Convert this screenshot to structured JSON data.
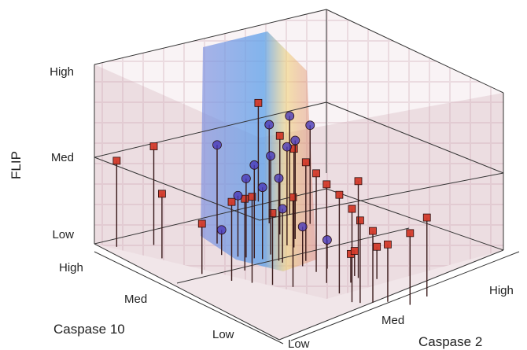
{
  "chart_data": {
    "type": "scatter",
    "title": "",
    "dimensions": 3,
    "axes": {
      "z": {
        "label": "FLIP",
        "ticks": [
          "Low",
          "Med",
          "High"
        ]
      },
      "x": {
        "label": "Caspase 10",
        "ticks": [
          "High",
          "Med",
          "Low"
        ]
      },
      "y": {
        "label": "Caspase 2",
        "ticks": [
          "Low",
          "Med",
          "High"
        ]
      }
    },
    "grid": true,
    "series": [
      {
        "marker": "square",
        "color": "#d23a2a",
        "points": [
          [
            0.06,
            0.05,
            0.48
          ],
          [
            0.62,
            0.22,
            1.05
          ],
          [
            0.7,
            0.25,
            0.9
          ],
          [
            0.74,
            0.28,
            0.84
          ],
          [
            0.78,
            0.3,
            0.78
          ],
          [
            0.8,
            0.33,
            0.72
          ],
          [
            0.82,
            0.36,
            0.66
          ],
          [
            0.84,
            0.4,
            0.6
          ],
          [
            0.86,
            0.44,
            0.52
          ],
          [
            0.88,
            0.46,
            0.46
          ],
          [
            0.9,
            0.5,
            0.4
          ],
          [
            0.92,
            0.55,
            0.32
          ],
          [
            0.2,
            0.1,
            0.62
          ],
          [
            0.22,
            0.12,
            0.36
          ],
          [
            0.45,
            0.3,
            0.4
          ],
          [
            0.5,
            0.2,
            0.44
          ],
          [
            0.55,
            0.25,
            0.48
          ],
          [
            0.6,
            0.3,
            0.4
          ],
          [
            0.65,
            0.35,
            0.5
          ],
          [
            0.7,
            0.6,
            0.54
          ],
          [
            0.95,
            0.7,
            0.44
          ],
          [
            0.98,
            0.6,
            0.4
          ],
          [
            0.4,
            0.15,
            0.28
          ],
          [
            0.74,
            0.65,
            0.18
          ],
          [
            0.72,
            0.55,
            0.16
          ],
          [
            0.68,
            0.6,
            0.14
          ]
        ]
      },
      {
        "marker": "circle",
        "color": "#4a3ab8",
        "points": [
          [
            0.3,
            0.3,
            0.62
          ],
          [
            0.4,
            0.45,
            0.74
          ],
          [
            0.45,
            0.5,
            0.8
          ],
          [
            0.5,
            0.55,
            0.76
          ],
          [
            0.48,
            0.5,
            0.68
          ],
          [
            0.46,
            0.48,
            0.64
          ],
          [
            0.42,
            0.44,
            0.58
          ],
          [
            0.38,
            0.4,
            0.52
          ],
          [
            0.44,
            0.46,
            0.46
          ],
          [
            0.36,
            0.38,
            0.44
          ],
          [
            0.4,
            0.42,
            0.4
          ],
          [
            0.34,
            0.36,
            0.34
          ],
          [
            0.46,
            0.46,
            0.3
          ],
          [
            0.52,
            0.5,
            0.22
          ],
          [
            0.58,
            0.56,
            0.16
          ],
          [
            0.3,
            0.32,
            0.14
          ]
        ]
      }
    ],
    "surface": {
      "description_colors": [
        "#4a7fd6",
        "#e8d96a",
        "#c85a5a"
      ],
      "volume_color": "#c89aa8"
    }
  }
}
